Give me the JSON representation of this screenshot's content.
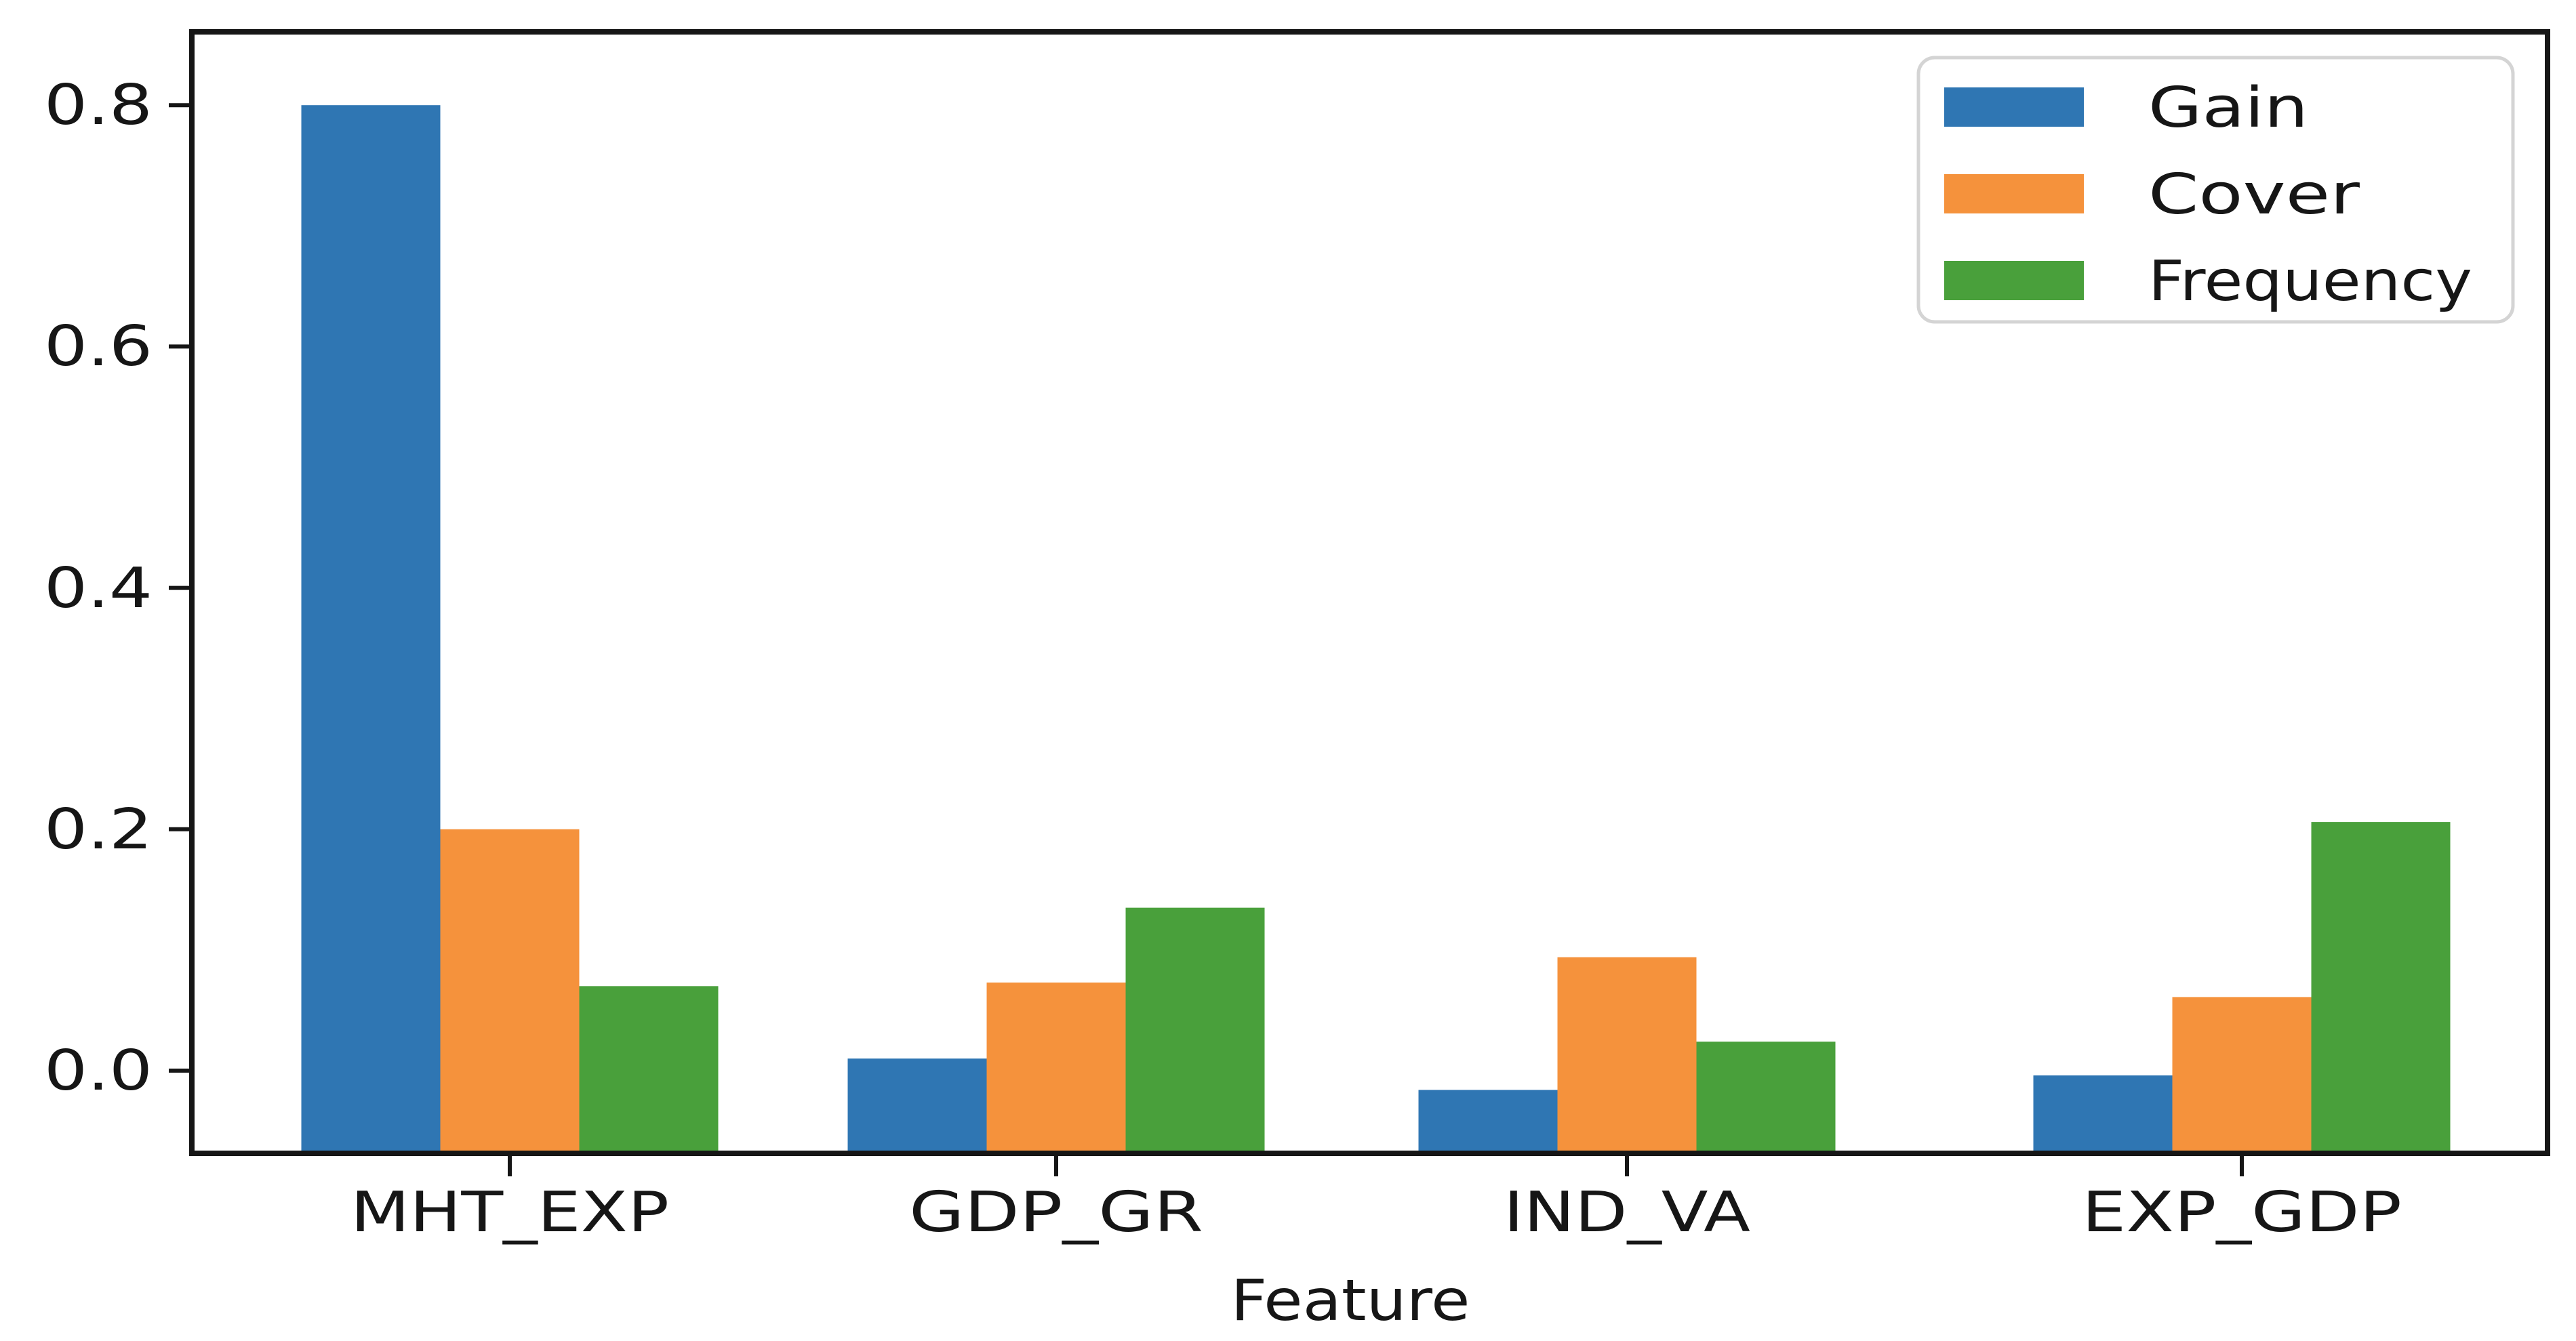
{
  "chart_data": {
    "type": "bar",
    "title": "",
    "xlabel": "Feature",
    "ylabel": "",
    "categories": [
      "MHT_EXP",
      "GDP_GR",
      "IND_VA",
      "EXP_GDP"
    ],
    "series": [
      {
        "name": "Gain",
        "color": "#2f76b3",
        "values": [
          0.8,
          0.01,
          -0.016,
          -0.004
        ]
      },
      {
        "name": "Cover",
        "color": "#f5923c",
        "values": [
          0.2,
          0.073,
          0.094,
          0.061
        ]
      },
      {
        "name": "Frequency",
        "color": "#49a03b",
        "values": [
          0.07,
          0.135,
          0.024,
          0.206
        ]
      }
    ],
    "yticks": [
      0.0,
      0.2,
      0.4,
      0.6,
      0.8
    ],
    "yticklabels": [
      "0.0",
      "0.2",
      "0.4",
      "0.6",
      "0.8"
    ],
    "ylim": [
      -0.069,
      0.861
    ],
    "bar_base": -0.069,
    "grid": false,
    "legend_position": "upper right",
    "background": "#ffffff",
    "spine_color": "#161616"
  }
}
